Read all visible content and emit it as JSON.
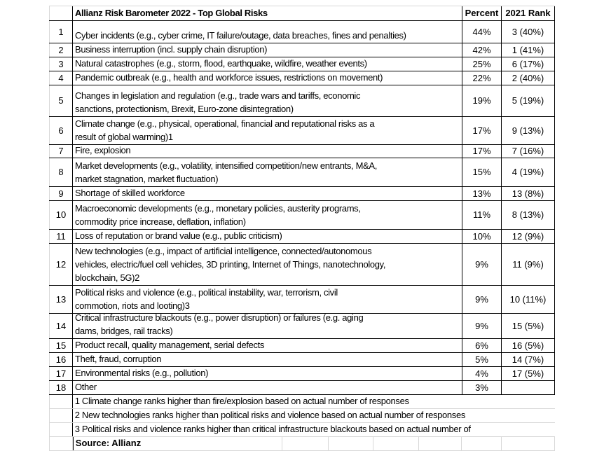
{
  "header": {
    "title": "Allianz Risk Barometer 2022 - Top Global Risks",
    "percent": "Percent",
    "rank2021": "2021 Rank"
  },
  "rows": [
    {
      "n": "1",
      "risk": "\nCyber incidents (e.g., cyber crime, IT failure/outage, data breaches, fines and penalties)",
      "pct": "44%",
      "rank": "3 (40%)"
    },
    {
      "n": "2",
      "risk": "Business interruption (incl. supply chain disruption)",
      "pct": "42%",
      "rank": "1 (41%)"
    },
    {
      "n": "3",
      "risk": "Natural catastrophes (e.g., storm, flood, earthquake, wildfire, weather events)",
      "pct": "25%",
      "rank": "6 (17%)"
    },
    {
      "n": "4",
      "risk": "Pandemic outbreak (e.g., health and workforce issues, restrictions on movement)",
      "pct": "22%",
      "rank": "2 (40%)"
    },
    {
      "n": "5",
      "risk": "Changes in legislation and regulation (e.g., trade wars and tariffs, economic\nsanctions, protectionism, Brexit, Euro-zone disintegration)",
      "pct": "19%",
      "rank": "5 (19%)"
    },
    {
      "n": "6",
      "risk": "Climate change (e.g., physical, operational, financial and reputational risks as a\nresult of global warming)1",
      "pct": "17%",
      "rank": "9 (13%)"
    },
    {
      "n": "7",
      "risk": "Fire, explosion",
      "pct": "17%",
      "rank": "7 (16%)"
    },
    {
      "n": "8",
      "risk": "Market developments (e.g., volatility, intensified competition/new entrants, M&A,\nmarket stagnation, market fluctuation)",
      "pct": "15%",
      "rank": "4 (19%)"
    },
    {
      "n": "9",
      "risk": "Shortage of skilled workforce",
      "pct": "13%",
      "rank": "13 (8%)"
    },
    {
      "n": "10",
      "risk": "Macroeconomic developments (e.g., monetary policies, austerity programs,\ncommodity price increase, deflation, inflation)",
      "pct": "11%",
      "rank": "8 (13%)"
    },
    {
      "n": "11",
      "risk": "Loss of reputation or brand value (e.g., public criticism)",
      "pct": "10%",
      "rank": "12 (9%)"
    },
    {
      "n": "12",
      "risk": "New technologies (e.g., impact of artificial intelligence, connected/autonomous\nvehicles, electric/fuel cell vehicles, 3D printing, Internet of Things, nanotechnology,\nblockchain, 5G)2",
      "pct": "9%",
      "rank": "11 (9%)"
    },
    {
      "n": "13",
      "risk": "Political risks and violence (e.g., political instability, war, terrorism, civil\ncommotion, riots and looting)3",
      "pct": "9%",
      "rank": "10 (11%)"
    },
    {
      "n": "14",
      "risk": "Critical infrastructure blackouts (e.g., power disruption) or failures (e.g. aging\ndams, bridges, rail tracks)",
      "pct": "9%",
      "rank": "15 (5%)"
    },
    {
      "n": "15",
      "risk": "Product recall, quality management, serial defects",
      "pct": "6%",
      "rank": "16 (5%)"
    },
    {
      "n": "16",
      "risk": "Theft, fraud, corruption",
      "pct": "5%",
      "rank": "14 (7%)"
    },
    {
      "n": "17",
      "risk": "Environmental risks (e.g., pollution)",
      "pct": "4%",
      "rank": "17 (5%)"
    },
    {
      "n": "18",
      "risk": "Other",
      "pct": "3%",
      "rank": ""
    }
  ],
  "footnotes": [
    "1 Climate change ranks higher than fire/explosion based on actual number of responses",
    "2 New technologies ranks higher than political risks and violence based on actual number of responses",
    "3 Political risks and violence ranks higher than critical infrastructure blackouts based on actual number of"
  ],
  "source": "Source: Allianz"
}
